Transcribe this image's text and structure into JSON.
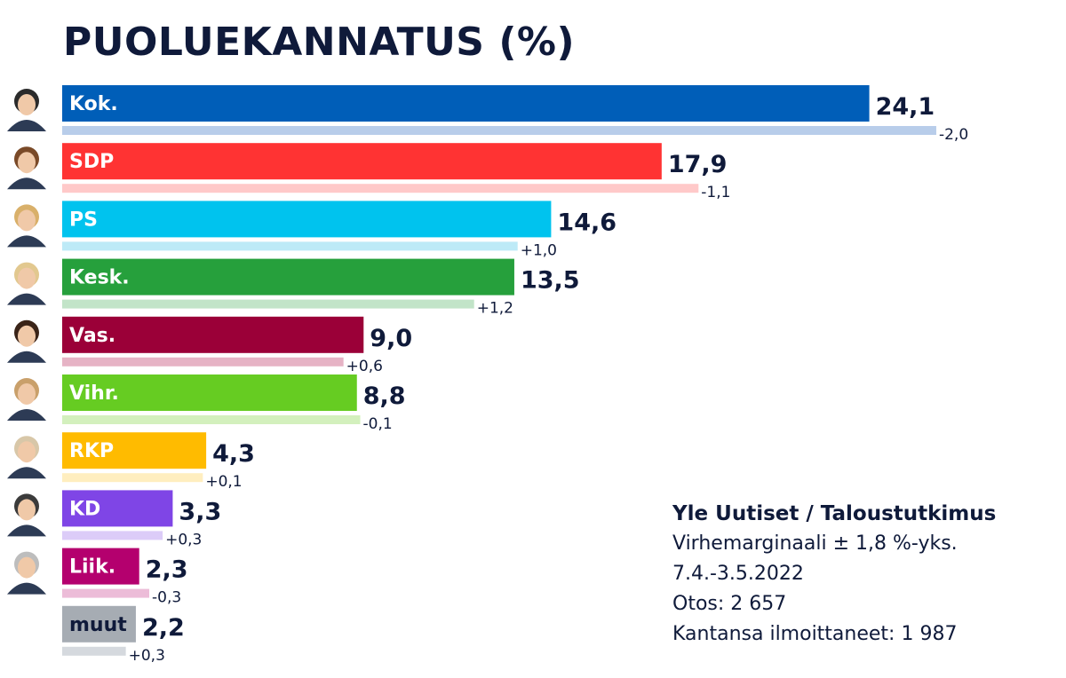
{
  "title": "PUOLUEKANNATUS (%)",
  "source": {
    "title": "Yle Uutiset / Taloustutkimus",
    "lines": [
      "Virhemarginaali ± 1,8 %-yks.",
      "7.4.-3.5.2022",
      "Otos: 2 657",
      "Kantansa ilmoittaneet: 1 987"
    ]
  },
  "chart_data": {
    "type": "bar",
    "orientation": "horizontal",
    "title": "PUOLUEKANNATUS (%)",
    "categories": [
      "Kok.",
      "SDP",
      "PS",
      "Kesk.",
      "Vas.",
      "Vihr.",
      "RKP",
      "KD",
      "Liik.",
      "muut"
    ],
    "series": [
      {
        "name": "",
        "values": [
          24.1,
          17.9,
          14.6,
          13.5,
          9.0,
          8.8,
          4.3,
          3.3,
          2.3,
          2.2
        ]
      }
    ],
    "value_labels": [
      "24,1",
      "17,9",
      "14,6",
      "13,5",
      "9,0",
      "8,8",
      "4,3",
      "3,3",
      "2,3",
      "2,2"
    ],
    "previous_values": [
      26.1,
      19.0,
      13.6,
      12.3,
      8.4,
      8.9,
      4.2,
      3.0,
      2.6,
      1.9
    ],
    "change_labels": [
      "-2,0",
      "-1,1",
      "+1,0",
      "+1,2",
      "+0,6",
      "-0,1",
      "+0,1",
      "+0,3",
      "-0,3",
      "+0,3"
    ],
    "colors": [
      "#005eb8",
      "#ff3333",
      "#00c3ee",
      "#26a03c",
      "#9b0038",
      "#66cc22",
      "#ffbb00",
      "#7f45e6",
      "#b4006e",
      "#a6acb3"
    ],
    "change_bar_colors": [
      "#b8cdea",
      "#ffc9c9",
      "#bdeaf7",
      "#c2e4c8",
      "#e6b3c5",
      "#d3f0bd",
      "#ffeebf",
      "#dcccf8",
      "#ecbcd8",
      "#d5d9de"
    ],
    "label_colors": [
      "#ffffff",
      "#ffffff",
      "#ffffff",
      "#ffffff",
      "#ffffff",
      "#ffffff",
      "#ffffff",
      "#ffffff",
      "#ffffff",
      "#0f1a3a"
    ],
    "has_portrait": [
      true,
      true,
      true,
      true,
      true,
      true,
      true,
      true,
      true,
      false
    ],
    "grid": false,
    "legend": "none"
  }
}
